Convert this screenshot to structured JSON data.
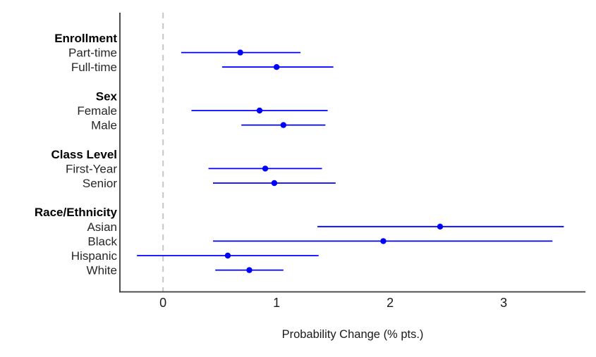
{
  "chart_data": {
    "type": "scatter",
    "subtype": "forest-pointrange",
    "title": "",
    "xlabel": "Probability Change (% pts.)",
    "ylabel": "",
    "xlim": [
      -0.38,
      3.72
    ],
    "xticks": [
      0,
      1,
      2,
      3
    ],
    "zero_reference_line": 0,
    "grid": "off",
    "legend": "none",
    "rows": [
      {
        "label": "Enrollment",
        "header": true
      },
      {
        "label": "Part-time",
        "header": false,
        "est": 0.68,
        "lo": 0.16,
        "hi": 1.21
      },
      {
        "label": "Full-time",
        "header": false,
        "est": 1.0,
        "lo": 0.52,
        "hi": 1.5
      },
      {
        "label": "",
        "header": false
      },
      {
        "label": "Sex",
        "header": true
      },
      {
        "label": "Female",
        "header": false,
        "est": 0.85,
        "lo": 0.25,
        "hi": 1.45
      },
      {
        "label": "Male",
        "header": false,
        "est": 1.06,
        "lo": 0.69,
        "hi": 1.43
      },
      {
        "label": "",
        "header": false
      },
      {
        "label": "Class Level",
        "header": true
      },
      {
        "label": "First-Year",
        "header": false,
        "est": 0.9,
        "lo": 0.4,
        "hi": 1.4
      },
      {
        "label": "Senior",
        "header": false,
        "est": 0.98,
        "lo": 0.44,
        "hi": 1.52
      },
      {
        "label": "",
        "header": false
      },
      {
        "label": "Race/Ethnicity",
        "header": true
      },
      {
        "label": "Asian",
        "header": false,
        "est": 2.44,
        "lo": 1.36,
        "hi": 3.53
      },
      {
        "label": "Black",
        "header": false,
        "est": 1.94,
        "lo": 0.44,
        "hi": 3.43
      },
      {
        "label": "Hispanic",
        "header": false,
        "est": 0.57,
        "lo": -0.23,
        "hi": 1.37
      },
      {
        "label": "White",
        "header": false,
        "est": 0.76,
        "lo": 0.46,
        "hi": 1.06
      }
    ],
    "colors": {
      "estimate_blue": "#0000FF",
      "zero_line_gray": "#C6C6C6",
      "axis_line": "#3A3A3A",
      "tick_text": "#1A1A1A",
      "row_label_text": "#262626",
      "header_text": "#000000",
      "background": "#FFFFFF"
    }
  }
}
